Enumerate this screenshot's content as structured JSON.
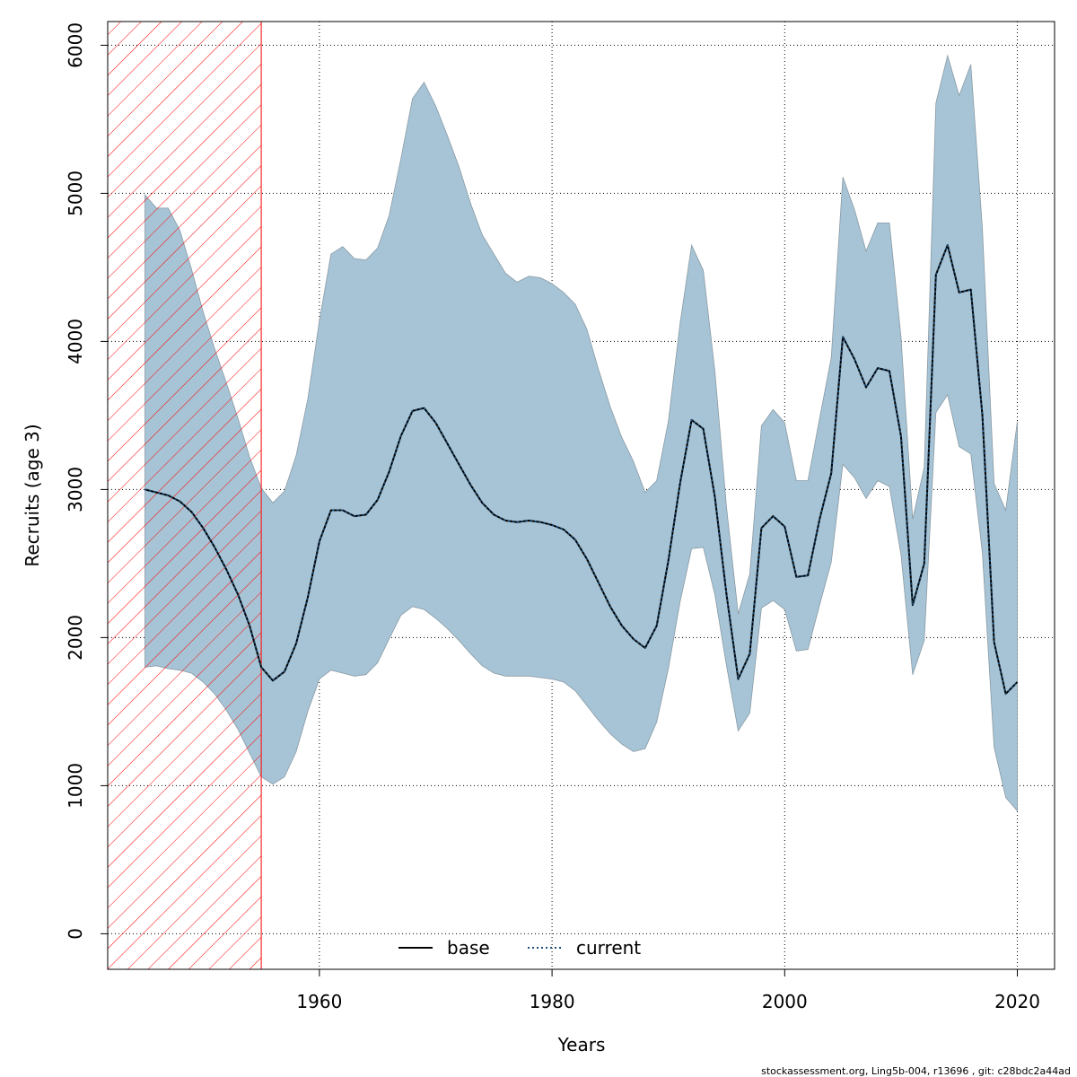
{
  "chart_data": {
    "type": "area",
    "xlabel": "Years",
    "ylabel": "Recruits (age 3)",
    "xlim": [
      1941.8,
      2023.2
    ],
    "ylim": [
      -240,
      6160
    ],
    "x_ticks": [
      1960,
      1980,
      2000,
      2020
    ],
    "x_tick_labels": [
      "1960",
      "1980",
      "2000",
      "2020"
    ],
    "y_ticks": [
      0,
      1000,
      2000,
      3000,
      4000,
      5000,
      6000
    ],
    "y_tick_labels": [
      "0",
      "1000",
      "2000",
      "3000",
      "4000",
      "5000",
      "6000"
    ],
    "grid": true,
    "legend_position": "bottom",
    "hatched_region": {
      "x_from": 1941.8,
      "x_to": 1955,
      "color": "#ff0000"
    },
    "band_color": "#a6c4d5",
    "x": [
      1945,
      1946,
      1947,
      1948,
      1949,
      1950,
      1951,
      1952,
      1953,
      1954,
      1955,
      1956,
      1957,
      1958,
      1959,
      1960,
      1961,
      1962,
      1963,
      1964,
      1965,
      1966,
      1967,
      1968,
      1969,
      1970,
      1971,
      1972,
      1973,
      1974,
      1975,
      1976,
      1977,
      1978,
      1979,
      1980,
      1981,
      1982,
      1983,
      1984,
      1985,
      1986,
      1987,
      1988,
      1989,
      1990,
      1991,
      1992,
      1993,
      1994,
      1995,
      1996,
      1997,
      1998,
      1999,
      2000,
      2001,
      2002,
      2003,
      2004,
      2005,
      2006,
      2007,
      2008,
      2009,
      2010,
      2011,
      2012,
      2013,
      2014,
      2015,
      2016,
      2017,
      2018,
      2019,
      2020
    ],
    "band_upper": [
      4990,
      4900,
      4900,
      4750,
      4490,
      4200,
      3950,
      3720,
      3480,
      3220,
      3010,
      2910,
      2990,
      3230,
      3610,
      4140,
      4590,
      4640,
      4560,
      4550,
      4630,
      4850,
      5230,
      5640,
      5750,
      5590,
      5390,
      5180,
      4930,
      4720,
      4590,
      4460,
      4400,
      4440,
      4430,
      4390,
      4330,
      4250,
      4080,
      3810,
      3560,
      3350,
      3190,
      2980,
      3060,
      3460,
      4120,
      4650,
      4480,
      3800,
      2880,
      2160,
      2430,
      3430,
      3540,
      3450,
      3060,
      3060,
      3480,
      3890,
      5110,
      4890,
      4610,
      4800,
      4800,
      4030,
      2800,
      3150,
      5610,
      5930,
      5660,
      5870,
      4760,
      3040,
      2860,
      3460
    ],
    "band_lower": [
      1800,
      1810,
      1790,
      1780,
      1760,
      1700,
      1620,
      1510,
      1380,
      1220,
      1060,
      1010,
      1060,
      1230,
      1500,
      1720,
      1780,
      1760,
      1740,
      1750,
      1830,
      1990,
      2150,
      2210,
      2190,
      2130,
      2060,
      1980,
      1890,
      1810,
      1760,
      1740,
      1740,
      1740,
      1730,
      1720,
      1700,
      1640,
      1540,
      1440,
      1350,
      1280,
      1230,
      1250,
      1430,
      1790,
      2240,
      2600,
      2610,
      2290,
      1810,
      1370,
      1490,
      2200,
      2250,
      2190,
      1910,
      1920,
      2220,
      2510,
      3170,
      3080,
      2940,
      3060,
      3020,
      2560,
      1750,
      1980,
      3520,
      3640,
      3290,
      3240,
      2570,
      1260,
      920,
      830
    ],
    "series": [
      {
        "name": "base",
        "style": "solid",
        "color": "#000000",
        "values": [
          3000,
          2980,
          2960,
          2920,
          2850,
          2740,
          2610,
          2460,
          2290,
          2080,
          1800,
          1710,
          1770,
          1960,
          2270,
          2650,
          2860,
          2860,
          2820,
          2830,
          2930,
          3120,
          3360,
          3530,
          3550,
          3450,
          3310,
          3170,
          3030,
          2910,
          2830,
          2790,
          2780,
          2790,
          2780,
          2760,
          2730,
          2660,
          2530,
          2370,
          2210,
          2080,
          1990,
          1930,
          2080,
          2520,
          3040,
          3470,
          3410,
          2950,
          2290,
          1720,
          1890,
          2740,
          2820,
          2750,
          2410,
          2420,
          2800,
          3110,
          4030,
          3880,
          3690,
          3820,
          3800,
          3360,
          2220,
          2500,
          4450,
          4650,
          4330,
          4350,
          3500,
          1970,
          1620,
          1700
        ]
      },
      {
        "name": "current",
        "style": "dotted",
        "color": "#1f4e79",
        "values": [
          3000,
          2980,
          2960,
          2920,
          2850,
          2740,
          2610,
          2460,
          2290,
          2080,
          1800,
          1710,
          1770,
          1960,
          2270,
          2650,
          2860,
          2860,
          2820,
          2830,
          2930,
          3120,
          3360,
          3530,
          3550,
          3450,
          3310,
          3170,
          3030,
          2910,
          2830,
          2790,
          2780,
          2790,
          2780,
          2760,
          2730,
          2660,
          2530,
          2370,
          2210,
          2080,
          1990,
          1930,
          2080,
          2520,
          3040,
          3470,
          3410,
          2950,
          2290,
          1720,
          1890,
          2740,
          2820,
          2750,
          2410,
          2420,
          2800,
          3110,
          4030,
          3880,
          3690,
          3820,
          3800,
          3360,
          2220,
          2500,
          4450,
          4650,
          4330,
          4350,
          3500,
          1970,
          1620,
          1700
        ]
      }
    ],
    "legend": [
      {
        "label": "base",
        "style": "solid"
      },
      {
        "label": "current",
        "style": "dotted"
      }
    ]
  },
  "footer": "stockassessment.org, Ling5b-004, r13696 , git: c28bdc2a44ad"
}
